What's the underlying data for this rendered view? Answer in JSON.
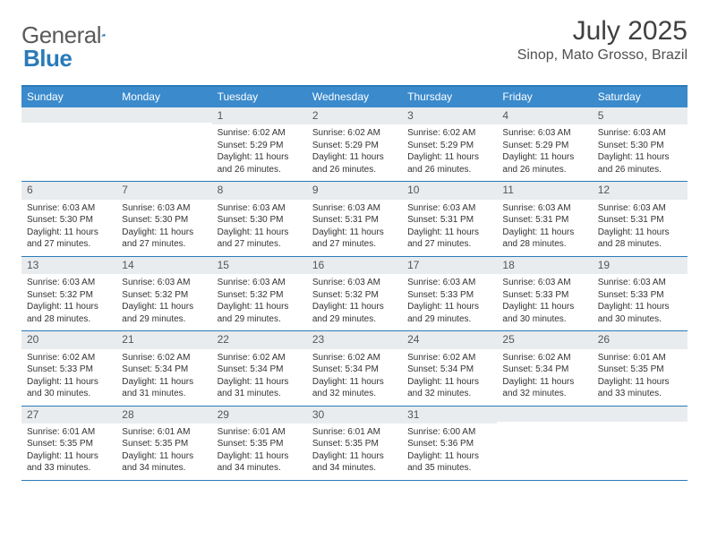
{
  "brand": {
    "name1": "General",
    "name2": "Blue"
  },
  "title": "July 2025",
  "location": "Sinop, Mato Grosso, Brazil",
  "colors": {
    "header_bar": "#3a8acc",
    "border": "#2a7ab8",
    "daynum_bg": "#e9ecef",
    "text": "#333333",
    "title_text": "#404040"
  },
  "weekdays": [
    "Sunday",
    "Monday",
    "Tuesday",
    "Wednesday",
    "Thursday",
    "Friday",
    "Saturday"
  ],
  "first_weekday_index": 2,
  "days": [
    {
      "n": 1,
      "sunrise": "6:02 AM",
      "sunset": "5:29 PM",
      "daylight": "11 hours and 26 minutes."
    },
    {
      "n": 2,
      "sunrise": "6:02 AM",
      "sunset": "5:29 PM",
      "daylight": "11 hours and 26 minutes."
    },
    {
      "n": 3,
      "sunrise": "6:02 AM",
      "sunset": "5:29 PM",
      "daylight": "11 hours and 26 minutes."
    },
    {
      "n": 4,
      "sunrise": "6:03 AM",
      "sunset": "5:29 PM",
      "daylight": "11 hours and 26 minutes."
    },
    {
      "n": 5,
      "sunrise": "6:03 AM",
      "sunset": "5:30 PM",
      "daylight": "11 hours and 26 minutes."
    },
    {
      "n": 6,
      "sunrise": "6:03 AM",
      "sunset": "5:30 PM",
      "daylight": "11 hours and 27 minutes."
    },
    {
      "n": 7,
      "sunrise": "6:03 AM",
      "sunset": "5:30 PM",
      "daylight": "11 hours and 27 minutes."
    },
    {
      "n": 8,
      "sunrise": "6:03 AM",
      "sunset": "5:30 PM",
      "daylight": "11 hours and 27 minutes."
    },
    {
      "n": 9,
      "sunrise": "6:03 AM",
      "sunset": "5:31 PM",
      "daylight": "11 hours and 27 minutes."
    },
    {
      "n": 10,
      "sunrise": "6:03 AM",
      "sunset": "5:31 PM",
      "daylight": "11 hours and 27 minutes."
    },
    {
      "n": 11,
      "sunrise": "6:03 AM",
      "sunset": "5:31 PM",
      "daylight": "11 hours and 28 minutes."
    },
    {
      "n": 12,
      "sunrise": "6:03 AM",
      "sunset": "5:31 PM",
      "daylight": "11 hours and 28 minutes."
    },
    {
      "n": 13,
      "sunrise": "6:03 AM",
      "sunset": "5:32 PM",
      "daylight": "11 hours and 28 minutes."
    },
    {
      "n": 14,
      "sunrise": "6:03 AM",
      "sunset": "5:32 PM",
      "daylight": "11 hours and 29 minutes."
    },
    {
      "n": 15,
      "sunrise": "6:03 AM",
      "sunset": "5:32 PM",
      "daylight": "11 hours and 29 minutes."
    },
    {
      "n": 16,
      "sunrise": "6:03 AM",
      "sunset": "5:32 PM",
      "daylight": "11 hours and 29 minutes."
    },
    {
      "n": 17,
      "sunrise": "6:03 AM",
      "sunset": "5:33 PM",
      "daylight": "11 hours and 29 minutes."
    },
    {
      "n": 18,
      "sunrise": "6:03 AM",
      "sunset": "5:33 PM",
      "daylight": "11 hours and 30 minutes."
    },
    {
      "n": 19,
      "sunrise": "6:03 AM",
      "sunset": "5:33 PM",
      "daylight": "11 hours and 30 minutes."
    },
    {
      "n": 20,
      "sunrise": "6:02 AM",
      "sunset": "5:33 PM",
      "daylight": "11 hours and 30 minutes."
    },
    {
      "n": 21,
      "sunrise": "6:02 AM",
      "sunset": "5:34 PM",
      "daylight": "11 hours and 31 minutes."
    },
    {
      "n": 22,
      "sunrise": "6:02 AM",
      "sunset": "5:34 PM",
      "daylight": "11 hours and 31 minutes."
    },
    {
      "n": 23,
      "sunrise": "6:02 AM",
      "sunset": "5:34 PM",
      "daylight": "11 hours and 32 minutes."
    },
    {
      "n": 24,
      "sunrise": "6:02 AM",
      "sunset": "5:34 PM",
      "daylight": "11 hours and 32 minutes."
    },
    {
      "n": 25,
      "sunrise": "6:02 AM",
      "sunset": "5:34 PM",
      "daylight": "11 hours and 32 minutes."
    },
    {
      "n": 26,
      "sunrise": "6:01 AM",
      "sunset": "5:35 PM",
      "daylight": "11 hours and 33 minutes."
    },
    {
      "n": 27,
      "sunrise": "6:01 AM",
      "sunset": "5:35 PM",
      "daylight": "11 hours and 33 minutes."
    },
    {
      "n": 28,
      "sunrise": "6:01 AM",
      "sunset": "5:35 PM",
      "daylight": "11 hours and 34 minutes."
    },
    {
      "n": 29,
      "sunrise": "6:01 AM",
      "sunset": "5:35 PM",
      "daylight": "11 hours and 34 minutes."
    },
    {
      "n": 30,
      "sunrise": "6:01 AM",
      "sunset": "5:35 PM",
      "daylight": "11 hours and 34 minutes."
    },
    {
      "n": 31,
      "sunrise": "6:00 AM",
      "sunset": "5:36 PM",
      "daylight": "11 hours and 35 minutes."
    }
  ],
  "labels": {
    "sunrise_prefix": "Sunrise: ",
    "sunset_prefix": "Sunset: ",
    "daylight_prefix": "Daylight: "
  }
}
